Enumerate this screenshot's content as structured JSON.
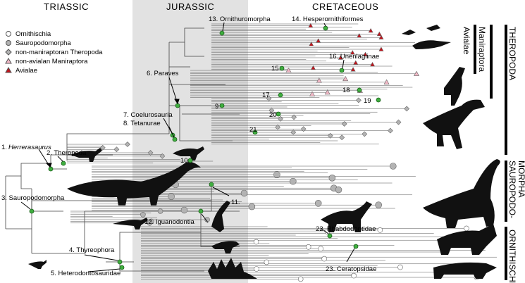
{
  "periods": [
    "TRIASSIC",
    "JURASSIC",
    "CRETACEOUS"
  ],
  "legend": [
    {
      "label": "Ornithischia",
      "marker": "circle-open"
    },
    {
      "label": "Sauropodomorpha",
      "marker": "circle-grey"
    },
    {
      "label": "non-maniraptoran Theropoda",
      "marker": "diamond-grey"
    },
    {
      "label": "non-avialan Maniraptora",
      "marker": "triangle-pink"
    },
    {
      "label": "Avialae",
      "marker": "triangle-red"
    }
  ],
  "labels": {
    "n1_num": "1.",
    "n1_name": "Herrerasaurus",
    "n2": "2. Theropoda",
    "n3": "3. Sauropodomorpha",
    "n4": "4. Thyreophora",
    "n5": "5. Heterodontosauridae",
    "n6": "6. Paraves",
    "n7": "7. Coelurosauria",
    "n8": "8. Tetanurae",
    "n9": "9",
    "n10": "10",
    "n11": "11.",
    "n12": "12. Iguanodontia",
    "n13": "13. Ornithuromorpha",
    "n14": "14. Hesperornithiformes",
    "n15": "15",
    "n16": "16. Unenlagiinae",
    "n17": "17",
    "n18": "18",
    "n19": "19",
    "n20": "20",
    "n21": "21",
    "n22": "22. Rhabdodontidae",
    "n23": "23. Ceratopsidae"
  },
  "groups": {
    "avialae": "Avialae",
    "maniraptora": "Maniraptora",
    "theropoda": "THEROPODA",
    "sauropodomorpha": "SAUROPODO-MORPHA",
    "ornithischia": "ORNITHISCHIA"
  },
  "colors": {
    "jurassic_band": "#e2e2e2",
    "node_green": "#3fae3f",
    "grey_marker": "#b3b3b3",
    "pink_marker": "#f2b8c6",
    "red_marker": "#c0141c"
  }
}
